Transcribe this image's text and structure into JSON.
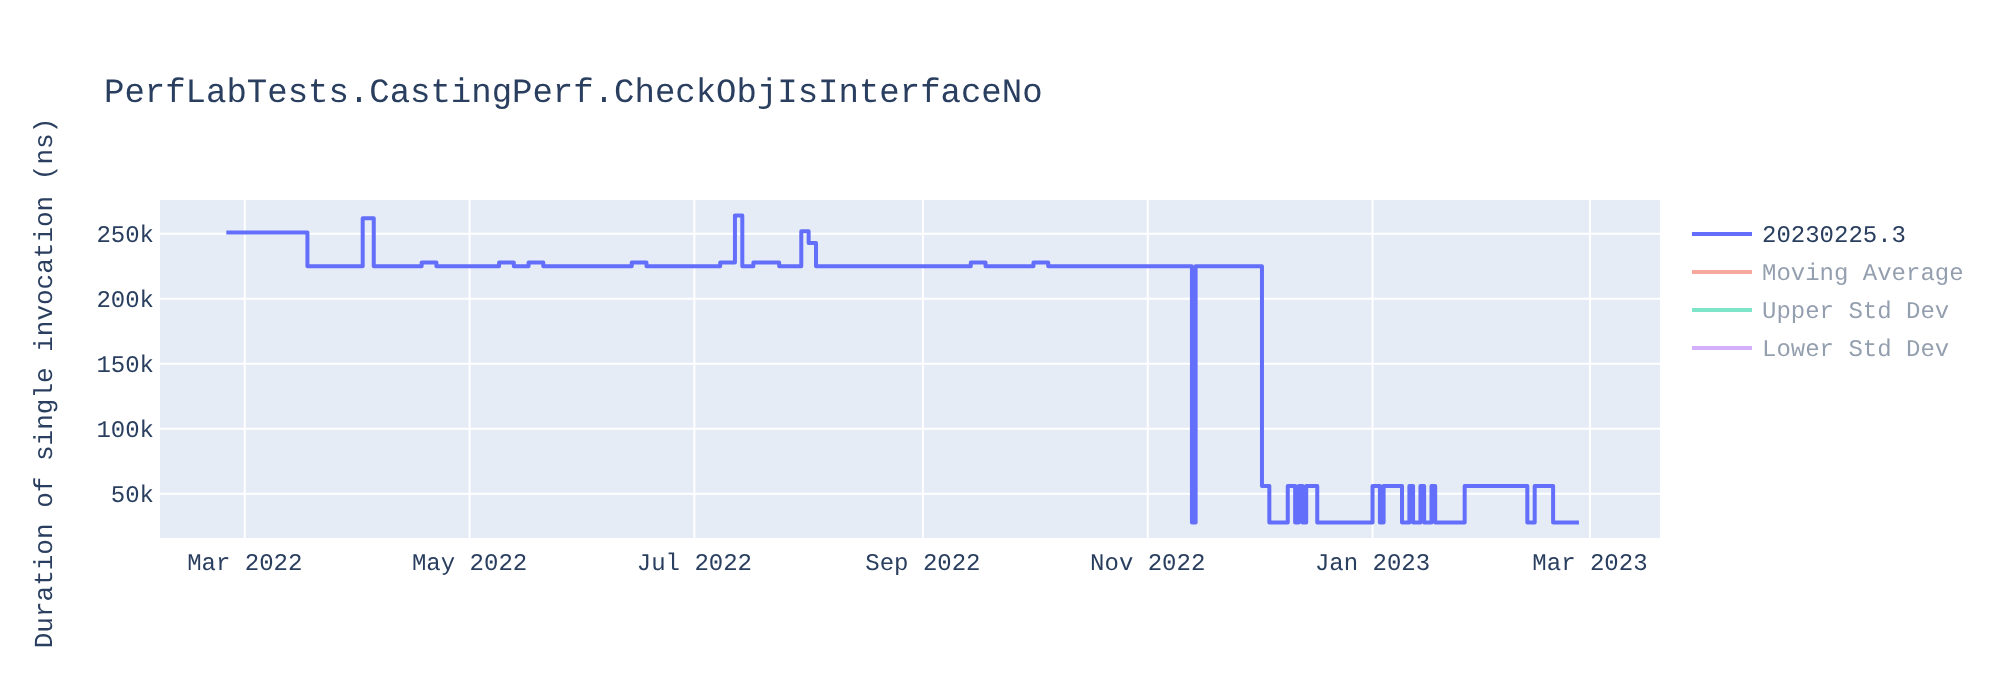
{
  "chart_data": {
    "type": "step",
    "title": "PerfLabTests.CastingPerf.CheckObjIsInterfaceNo",
    "ylabel": "Duration of single invocation (ns)",
    "x": [
      "2022-02-24",
      "2022-03-18",
      "2022-04-02",
      "2022-04-05",
      "2022-04-18",
      "2022-04-22",
      "2022-05-09",
      "2022-05-13",
      "2022-05-17",
      "2022-05-21",
      "2022-06-14",
      "2022-06-18",
      "2022-07-08",
      "2022-07-12",
      "2022-07-14",
      "2022-07-17",
      "2022-07-24",
      "2022-07-30",
      "2022-08-01",
      "2022-08-03",
      "2022-09-14",
      "2022-09-18",
      "2022-10-01",
      "2022-10-05",
      "2022-11-13",
      "2022-11-14",
      "2022-12-02",
      "2022-12-04",
      "2022-12-09",
      "2022-12-11",
      "2022-12-12",
      "2022-12-13",
      "2022-12-14",
      "2022-12-17",
      "2023-01-01",
      "2023-01-03",
      "2023-01-04",
      "2023-01-09",
      "2023-01-11",
      "2023-01-12",
      "2023-01-14",
      "2023-01-15",
      "2023-01-17",
      "2023-01-18",
      "2023-01-26",
      "2023-02-12",
      "2023-02-14",
      "2023-02-19",
      "2023-02-26"
    ],
    "series": [
      {
        "name": "20230225.3",
        "color": "#636efa",
        "values": [
          251000,
          225000,
          262000,
          225000,
          228000,
          225000,
          228000,
          225000,
          228000,
          225000,
          228000,
          225000,
          228000,
          264000,
          225000,
          228000,
          225000,
          252000,
          243000,
          225000,
          228000,
          225000,
          228000,
          225000,
          28000,
          225000,
          56000,
          28000,
          56000,
          28000,
          56000,
          28000,
          56000,
          28000,
          56000,
          28000,
          56000,
          28000,
          56000,
          28000,
          56000,
          28000,
          56000,
          28000,
          56000,
          28000,
          56000,
          28000,
          28000
        ]
      },
      {
        "name": "Moving Average",
        "color": "#ef553b",
        "values": [
          null,
          null,
          null,
          null,
          null,
          null,
          null,
          null,
          null,
          null,
          null,
          null,
          null,
          null,
          null,
          null,
          null,
          null,
          null,
          null,
          null,
          null,
          null,
          null,
          null,
          null,
          null,
          null,
          null,
          null,
          null,
          null,
          null,
          null,
          null,
          null,
          null,
          null,
          null,
          null,
          null,
          null,
          null,
          null,
          null,
          null,
          null,
          null,
          null
        ]
      },
      {
        "name": "Upper Std Dev",
        "color": "#00cc96",
        "values": [
          null,
          null,
          null,
          null,
          null,
          null,
          null,
          null,
          null,
          null,
          null,
          null,
          null,
          null,
          null,
          null,
          null,
          null,
          null,
          null,
          null,
          null,
          null,
          null,
          null,
          null,
          null,
          null,
          null,
          null,
          null,
          null,
          null,
          null,
          null,
          null,
          null,
          null,
          null,
          null,
          null,
          null,
          null,
          null,
          null,
          null,
          null,
          null,
          null
        ]
      },
      {
        "name": "Lower Std Dev",
        "color": "#ab63fa",
        "values": [
          null,
          null,
          null,
          null,
          null,
          null,
          null,
          null,
          null,
          null,
          null,
          null,
          null,
          null,
          null,
          null,
          null,
          null,
          null,
          null,
          null,
          null,
          null,
          null,
          null,
          null,
          null,
          null,
          null,
          null,
          null,
          null,
          null,
          null,
          null,
          null,
          null,
          null,
          null,
          null,
          null,
          null,
          null,
          null,
          null,
          null,
          null,
          null,
          null
        ]
      }
    ],
    "xlim": [
      "2022-02-06",
      "2023-03-20"
    ],
    "xticks": [
      {
        "value": "2022-03-01",
        "label": "Mar 2022"
      },
      {
        "value": "2022-05-01",
        "label": "May 2022"
      },
      {
        "value": "2022-07-01",
        "label": "Jul 2022"
      },
      {
        "value": "2022-09-01",
        "label": "Sep 2022"
      },
      {
        "value": "2022-11-01",
        "label": "Nov 2022"
      },
      {
        "value": "2023-01-01",
        "label": "Jan 2023"
      },
      {
        "value": "2023-03-01",
        "label": "Mar 2023"
      }
    ],
    "ylim": [
      16000,
      276000
    ],
    "yticks": [
      {
        "value": 50000,
        "label": "50k"
      },
      {
        "value": 100000,
        "label": "100k"
      },
      {
        "value": 150000,
        "label": "150k"
      },
      {
        "value": 200000,
        "label": "200k"
      },
      {
        "value": 250000,
        "label": "250k"
      }
    ],
    "grid": true,
    "legend": "top right"
  }
}
